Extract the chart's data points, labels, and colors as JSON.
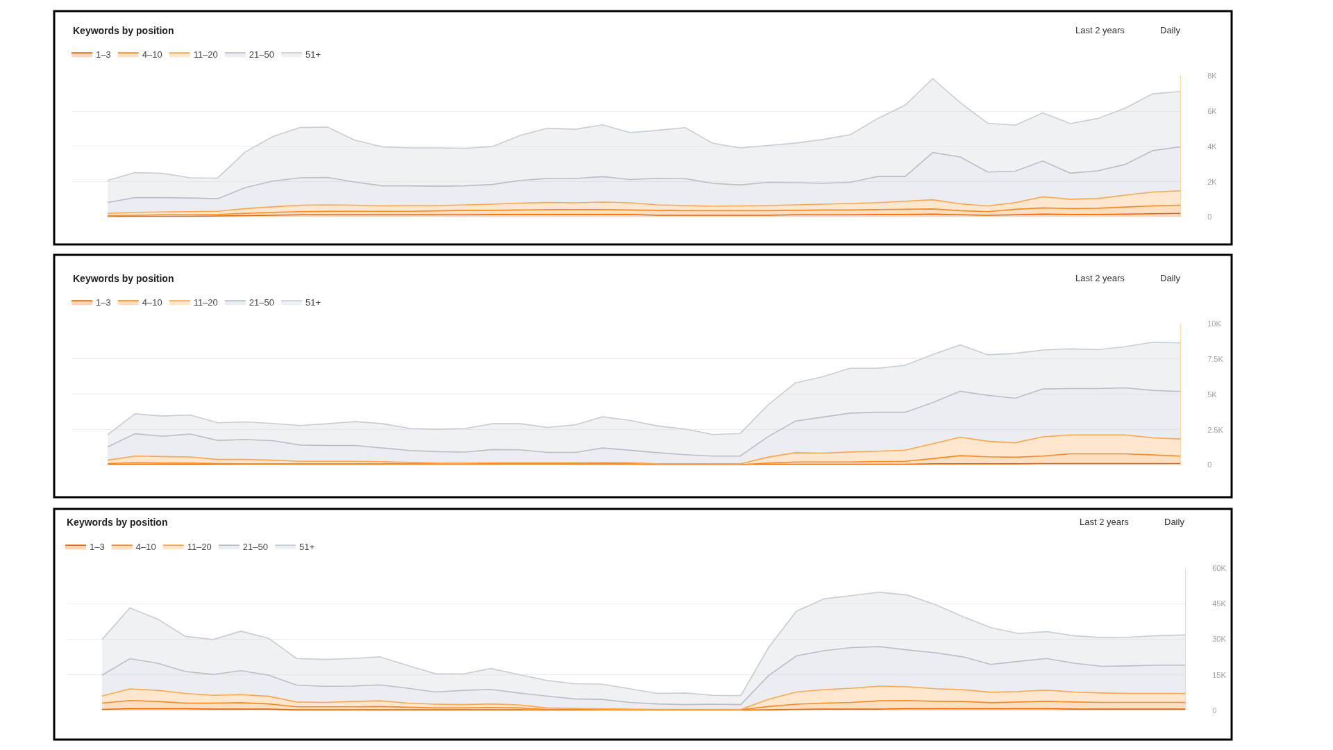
{
  "chart_data": [
    {
      "type": "area",
      "title": "Keywords by position",
      "annotations": [
        "Last 2 years",
        "Daily"
      ],
      "stacked": true,
      "grid": "y",
      "legend": "top left",
      "categories": [
        null,
        null,
        null,
        null,
        null,
        null,
        null,
        null,
        null,
        null,
        null,
        null,
        null,
        null,
        null,
        null,
        null,
        null,
        null,
        null,
        null,
        null,
        null,
        null,
        null,
        null,
        null,
        null,
        null,
        null,
        null,
        null,
        null,
        null,
        null,
        null,
        null,
        null,
        null,
        null
      ],
      "ylim": [
        0,
        8000
      ],
      "yticks": [
        0,
        {
          "value": 2000,
          "label": "2K"
        },
        {
          "value": 4000,
          "label": "4K"
        },
        {
          "value": 6000,
          "label": "6K"
        },
        {
          "value": 8000,
          "label": "8K"
        }
      ],
      "series": [
        {
          "name": "1–3",
          "color": "#e5670c",
          "values": [
            20,
            40,
            40,
            40,
            60,
            80,
            100,
            130,
            130,
            130,
            130,
            130,
            130,
            130,
            150,
            150,
            150,
            150,
            150,
            150,
            100,
            100,
            100,
            100,
            100,
            130,
            130,
            130,
            150,
            150,
            170,
            130,
            100,
            130,
            170,
            150,
            150,
            170,
            190,
            210
          ]
        },
        {
          "name": "4–10",
          "color": "#f58b24",
          "values": [
            60,
            60,
            90,
            90,
            90,
            130,
            170,
            180,
            200,
            200,
            200,
            200,
            220,
            250,
            230,
            250,
            270,
            270,
            270,
            250,
            280,
            260,
            260,
            260,
            260,
            250,
            270,
            270,
            270,
            290,
            290,
            230,
            210,
            310,
            350,
            330,
            350,
            400,
            440,
            460
          ]
        },
        {
          "name": "11–20",
          "color": "#fba651",
          "values": [
            130,
            170,
            160,
            180,
            180,
            270,
            310,
            360,
            360,
            340,
            300,
            320,
            300,
            310,
            350,
            390,
            410,
            390,
            430,
            410,
            310,
            290,
            250,
            270,
            290,
            310,
            330,
            370,
            400,
            460,
            520,
            390,
            320,
            380,
            630,
            530,
            550,
            670,
            790,
            820
          ]
        },
        {
          "name": "21–50",
          "color": "#b8bec8",
          "values": [
            620,
            830,
            810,
            770,
            710,
            1190,
            1460,
            1560,
            1560,
            1310,
            1140,
            1120,
            1100,
            1080,
            1120,
            1290,
            1360,
            1380,
            1440,
            1320,
            1510,
            1530,
            1300,
            1190,
            1320,
            1260,
            1180,
            1200,
            1480,
            1400,
            2680,
            2660,
            1920,
            1780,
            2030,
            1480,
            1570,
            1750,
            2350,
            2490
          ]
        },
        {
          "name": "51+",
          "color": "#c8cdd5",
          "values": [
            1250,
            1420,
            1380,
            1150,
            1170,
            2020,
            2520,
            2850,
            2850,
            2370,
            2210,
            2150,
            2170,
            2130,
            2150,
            2550,
            2850,
            2790,
            2940,
            2660,
            2720,
            2890,
            2280,
            2100,
            2090,
            2240,
            2490,
            2700,
            3290,
            4050,
            4190,
            3080,
            2770,
            2610,
            2730,
            2810,
            2970,
            3190,
            3220,
            3140
          ]
        }
      ]
    },
    {
      "type": "area",
      "title": "Keywords by position",
      "annotations": [
        "Last 2 years",
        "Daily"
      ],
      "stacked": true,
      "grid": "y",
      "legend": "top left",
      "categories": [
        null,
        null,
        null,
        null,
        null,
        null,
        null,
        null,
        null,
        null,
        null,
        null,
        null,
        null,
        null,
        null,
        null,
        null,
        null,
        null,
        null,
        null,
        null,
        null,
        null,
        null,
        null,
        null,
        null,
        null,
        null,
        null,
        null,
        null,
        null,
        null,
        null,
        null,
        null,
        null
      ],
      "ylim": [
        0,
        10000
      ],
      "yticks": [
        0,
        {
          "value": 2500,
          "label": "2.5K"
        },
        {
          "value": 5000,
          "label": "5K"
        },
        {
          "value": 7500,
          "label": "7.5K"
        },
        {
          "value": 10000,
          "label": "10K"
        }
      ],
      "series": [
        {
          "name": "1–3",
          "color": "#e5670c",
          "values": [
            50,
            50,
            50,
            50,
            50,
            50,
            50,
            50,
            50,
            50,
            50,
            50,
            50,
            50,
            50,
            50,
            50,
            50,
            50,
            50,
            20,
            20,
            20,
            20,
            50,
            50,
            50,
            50,
            50,
            50,
            80,
            80,
            80,
            80,
            100,
            100,
            100,
            100,
            100,
            100
          ]
        },
        {
          "name": "4–10",
          "color": "#f58b24",
          "values": [
            50,
            110,
            80,
            80,
            50,
            30,
            30,
            30,
            30,
            30,
            30,
            30,
            30,
            30,
            30,
            30,
            30,
            30,
            30,
            30,
            10,
            10,
            10,
            10,
            80,
            160,
            160,
            160,
            190,
            210,
            370,
            580,
            500,
            470,
            530,
            690,
            690,
            690,
            610,
            530
          ]
        },
        {
          "name": "11–20",
          "color": "#fba651",
          "values": [
            240,
            470,
            470,
            440,
            290,
            310,
            260,
            180,
            180,
            180,
            150,
            100,
            50,
            50,
            80,
            80,
            80,
            80,
            100,
            80,
            50,
            50,
            50,
            50,
            420,
            660,
            630,
            710,
            730,
            790,
            1050,
            1310,
            1100,
            1020,
            1360,
            1340,
            1340,
            1340,
            1210,
            1210
          ]
        },
        {
          "name": "21–50",
          "color": "#b8bec8",
          "values": [
            940,
            1580,
            1430,
            1620,
            1350,
            1410,
            1380,
            1150,
            1120,
            1120,
            970,
            840,
            810,
            780,
            930,
            910,
            730,
            730,
            1020,
            880,
            790,
            650,
            550,
            550,
            1440,
            2230,
            2550,
            2750,
            2760,
            2680,
            2910,
            3250,
            3250,
            3150,
            3390,
            3280,
            3280,
            3330,
            3360,
            3360
          ]
        },
        {
          "name": "51+",
          "color": "#c8cdd5",
          "values": [
            860,
            1410,
            1430,
            1350,
            1250,
            1250,
            1220,
            1380,
            1540,
            1690,
            1720,
            1560,
            1590,
            1670,
            1830,
            1850,
            1770,
            1950,
            2210,
            2110,
            1890,
            1820,
            1520,
            1600,
            2240,
            2700,
            2860,
            3180,
            3120,
            3330,
            3410,
            3280,
            2870,
            3180,
            2760,
            2810,
            2750,
            2910,
            3410,
            3440
          ]
        }
      ]
    },
    {
      "type": "area",
      "title": "Keywords by position",
      "annotations": [
        "Last 2 years",
        "Daily"
      ],
      "stacked": true,
      "grid": "y",
      "legend": "top left",
      "categories": [
        null,
        null,
        null,
        null,
        null,
        null,
        null,
        null,
        null,
        null,
        null,
        null,
        null,
        null,
        null,
        null,
        null,
        null,
        null,
        null,
        null,
        null,
        null,
        null,
        null,
        null,
        null,
        null,
        null,
        null,
        null,
        null,
        null,
        null,
        null,
        null,
        null,
        null,
        null,
        null
      ],
      "ylim": [
        0,
        60000
      ],
      "yticks": [
        0,
        {
          "value": 15000,
          "label": "15K"
        },
        {
          "value": 30000,
          "label": "30K"
        },
        {
          "value": 45000,
          "label": "45K"
        },
        {
          "value": 60000,
          "label": "60K"
        }
      ],
      "series": [
        {
          "name": "1–3",
          "color": "#e5670c",
          "values": [
            500,
            800,
            800,
            800,
            600,
            600,
            600,
            300,
            300,
            300,
            300,
            300,
            300,
            300,
            300,
            300,
            200,
            200,
            200,
            200,
            100,
            100,
            100,
            100,
            300,
            500,
            600,
            600,
            600,
            800,
            800,
            800,
            800,
            800,
            800,
            600,
            600,
            600,
            600,
            600
          ]
        },
        {
          "name": "4–10",
          "color": "#f58b24",
          "values": [
            2600,
            3400,
            3000,
            2300,
            2500,
            2700,
            2200,
            1300,
            1300,
            1300,
            1400,
            1100,
            800,
            800,
            1000,
            800,
            300,
            300,
            100,
            100,
            200,
            200,
            200,
            200,
            1400,
            2200,
            2500,
            2800,
            3500,
            3400,
            3100,
            3000,
            2500,
            2800,
            3100,
            3000,
            2800,
            2800,
            2800,
            2800
          ]
        },
        {
          "name": "11–20",
          "color": "#fba651",
          "values": [
            3000,
            4900,
            4700,
            4100,
            3300,
            3400,
            3200,
            2000,
            1800,
            2200,
            2400,
            1700,
            1600,
            1400,
            1500,
            1300,
            600,
            400,
            500,
            300,
            200,
            200,
            200,
            200,
            3000,
            5100,
            5700,
            6000,
            6200,
            5800,
            5300,
            5000,
            4400,
            4400,
            4700,
            4200,
            4000,
            3800,
            3800,
            3800
          ]
        },
        {
          "name": "21–50",
          "color": "#b8bec8",
          "values": [
            8800,
            12700,
            11400,
            9200,
            8800,
            10100,
            8900,
            7100,
            6800,
            6500,
            6700,
            6300,
            5100,
            6000,
            6100,
            5000,
            5000,
            4000,
            3900,
            2800,
            2300,
            2000,
            2200,
            2000,
            10000,
            15200,
            16400,
            17100,
            16600,
            15500,
            15100,
            13800,
            11700,
            12700,
            13300,
            12100,
            11200,
            11600,
            11900,
            11900
          ]
        },
        {
          "name": "51+",
          "color": "#c8cdd5",
          "values": [
            15000,
            21400,
            18600,
            14800,
            14700,
            16600,
            15500,
            11200,
            11300,
            11600,
            11800,
            9600,
            7700,
            6900,
            8800,
            7800,
            6600,
            6400,
            6400,
            5800,
            4400,
            4900,
            3700,
            3800,
            11800,
            18800,
            21800,
            21900,
            22900,
            23100,
            20300,
            16900,
            15500,
            11700,
            11300,
            11600,
            12100,
            12100,
            12400,
            12700
          ]
        }
      ]
    }
  ]
}
